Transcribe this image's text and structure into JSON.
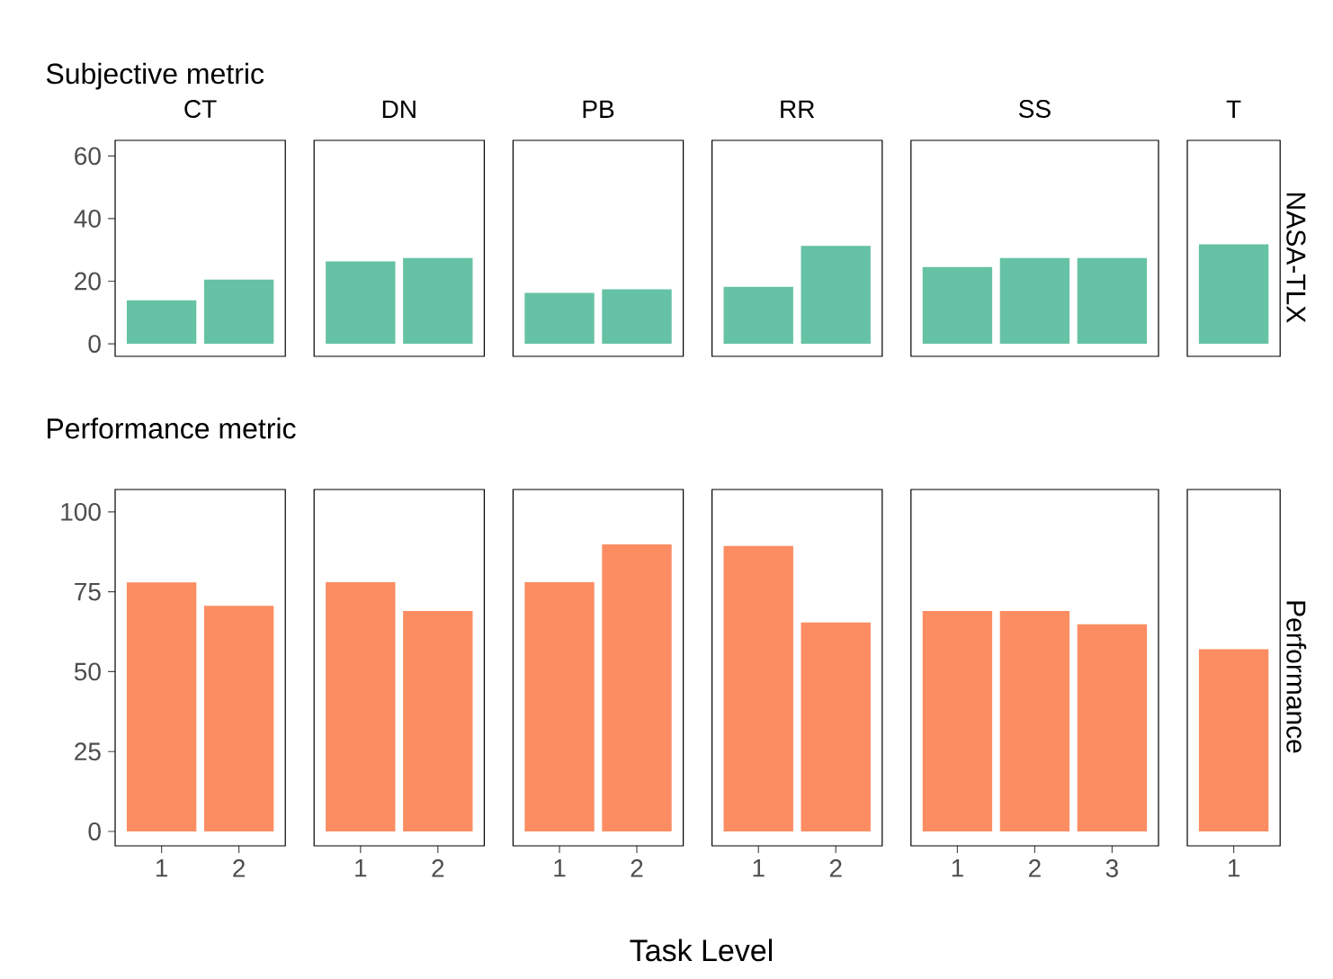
{
  "chart_data": [
    {
      "type": "bar",
      "title": "CT",
      "categories": [
        "1",
        "2"
      ],
      "values": [
        13.9,
        20.5
      ],
      "color": "#66c2a5",
      "ylim": [
        -4,
        65
      ],
      "yticks": [
        0,
        20,
        40,
        60
      ],
      "tick_labels": "y",
      "annotations": [
        "Subjective metric"
      ]
    },
    {
      "type": "bar",
      "title": "DN",
      "categories": [
        "1",
        "2"
      ],
      "values": [
        26.3,
        27.4
      ],
      "color": "#66c2a5",
      "ylim": [
        -4,
        65
      ],
      "tick_labels": false
    },
    {
      "type": "bar",
      "title": "PB",
      "categories": [
        "1",
        "2"
      ],
      "values": [
        16.3,
        17.4
      ],
      "color": "#66c2a5",
      "ylim": [
        -4,
        65
      ],
      "tick_labels": false
    },
    {
      "type": "bar",
      "title": "RR",
      "categories": [
        "1",
        "2"
      ],
      "values": [
        18.2,
        31.3
      ],
      "color": "#66c2a5",
      "ylim": [
        -4,
        65
      ],
      "tick_labels": false
    },
    {
      "type": "bar",
      "title": "SS",
      "categories": [
        "1",
        "2",
        "3"
      ],
      "values": [
        24.5,
        27.4,
        27.4
      ],
      "color": "#66c2a5",
      "ylim": [
        -4,
        65
      ],
      "tick_labels": false
    },
    {
      "type": "bar",
      "title": "T",
      "ylabel": "NASA-TLX",
      "categories": [
        "1"
      ],
      "values": [
        31.8
      ],
      "color": "#66c2a5",
      "ylim": [
        -4,
        65
      ],
      "tick_labels": false
    },
    {
      "type": "bar",
      "categories": [
        "1",
        "2"
      ],
      "values": [
        77.9,
        70.6
      ],
      "color": "#fc8d62",
      "ylim": [
        -4.5,
        107
      ],
      "yticks": [
        0,
        25,
        50,
        75,
        100
      ],
      "annotations": [
        "Performance metric"
      ]
    },
    {
      "type": "bar",
      "categories": [
        "1",
        "2"
      ],
      "values": [
        78,
        69
      ],
      "color": "#fc8d62",
      "ylim": [
        -4.5,
        107
      ],
      "tick_labels": "x"
    },
    {
      "type": "bar",
      "xlabel": "Task Level",
      "categories": [
        "1",
        "2"
      ],
      "values": [
        78,
        89.8
      ],
      "color": "#fc8d62",
      "ylim": [
        -4.5,
        107
      ],
      "tick_labels": "x"
    },
    {
      "type": "bar",
      "categories": [
        "1",
        "2"
      ],
      "values": [
        89.3,
        65.4
      ],
      "color": "#fc8d62",
      "ylim": [
        -4.5,
        107
      ],
      "tick_labels": "x"
    },
    {
      "type": "bar",
      "categories": [
        "1",
        "2",
        "3"
      ],
      "values": [
        69,
        69,
        64.8
      ],
      "color": "#fc8d62",
      "ylim": [
        -4.5,
        107
      ],
      "tick_labels": "x"
    },
    {
      "type": "bar",
      "ylabel": "Performance",
      "categories": [
        "1"
      ],
      "values": [
        57
      ],
      "color": "#fc8d62",
      "ylim": [
        -4.5,
        107
      ],
      "tick_labels": "x"
    }
  ]
}
